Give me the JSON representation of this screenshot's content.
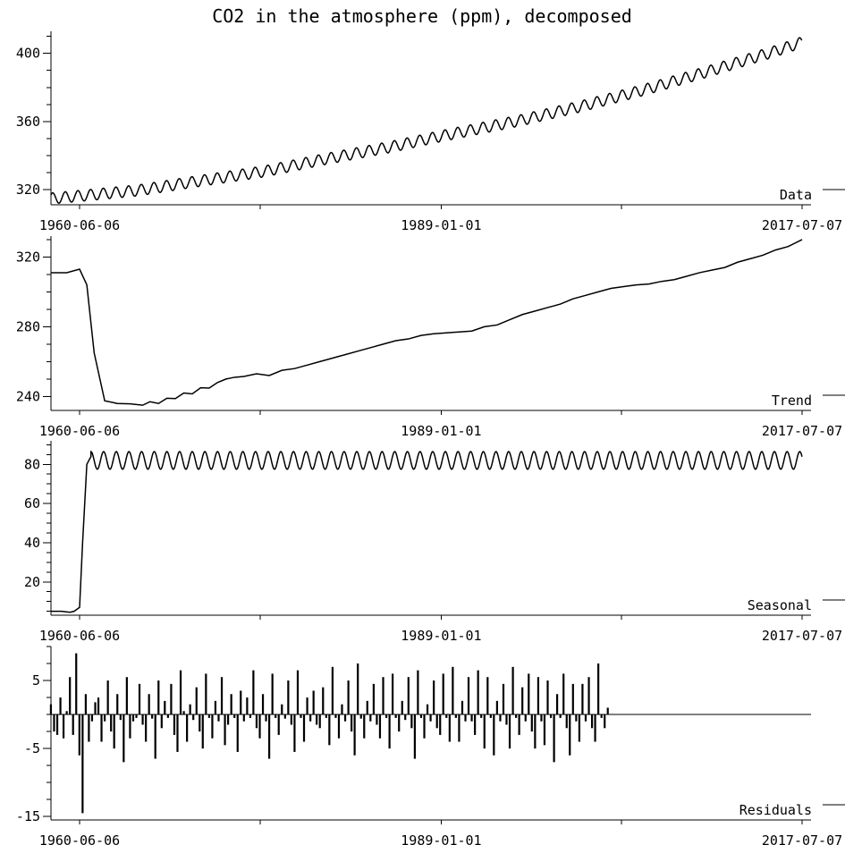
{
  "chart_data": {
    "type": "line",
    "title": "CO2 in the atmosphere (ppm), decomposed",
    "x_range": [
      "1958-03-01",
      "2017-07-07"
    ],
    "x_tick_labels": [
      "1960-06-06",
      "1989-01-01",
      "2017-07-07"
    ],
    "grid": false,
    "panels": [
      {
        "label": "Data",
        "type": "line",
        "ylim": [
          311,
          413
        ],
        "y_ticks": [
          320,
          360,
          400
        ],
        "trend": {
          "x": [
            "1958-03-01",
            "1960-06-06",
            "1965-01-01",
            "1970-01-01",
            "1975-01-01",
            "1980-01-01",
            "1985-01-01",
            "1989-01-01",
            "1995-01-01",
            "2000-01-01",
            "2005-01-01",
            "2010-01-01",
            "2015-01-01",
            "2017-07-07"
          ],
          "values": [
            314.7,
            316.2,
            319.4,
            325.1,
            330.6,
            338.1,
            345.0,
            351.4,
            360.2,
            368.8,
            378.5,
            389.2,
            400.4,
            406.5
          ]
        },
        "seasonal_amplitude": 3.2
      },
      {
        "label": "Trend",
        "type": "line",
        "ylim": [
          232,
          332
        ],
        "y_ticks": [
          240,
          280,
          320
        ],
        "x": [
          "1958-03-01",
          "1959-06-01",
          "1960-06-06",
          "1961-01-01",
          "1961-08-01",
          "1962-06-01",
          "1963-06-01",
          "1964-06-01",
          "1965-06-01",
          "1966-01-01",
          "1966-09-01",
          "1967-05-01",
          "1968-01-01",
          "1968-09-01",
          "1969-05-01",
          "1970-01-01",
          "1970-09-01",
          "1971-05-01",
          "1972-01-01",
          "1972-09-01",
          "1973-06-01",
          "1974-06-01",
          "1975-06-01",
          "1976-06-01",
          "1977-06-01",
          "1978-06-01",
          "1979-06-01",
          "1980-06-01",
          "1981-06-01",
          "1982-06-01",
          "1983-06-01",
          "1984-06-01",
          "1985-06-01",
          "1986-06-01",
          "1987-06-01",
          "1988-06-01",
          "1989-06-01",
          "1990-06-01",
          "1991-06-01",
          "1992-06-01",
          "1993-06-01",
          "1994-06-01",
          "1995-06-01",
          "1996-06-01",
          "1997-06-01",
          "1998-06-01",
          "1999-06-01",
          "2000-06-01",
          "2001-06-01",
          "2002-06-01",
          "2003-06-01",
          "2004-06-01",
          "2005-06-01",
          "2006-06-01",
          "2007-06-01",
          "2008-06-01",
          "2009-06-01",
          "2010-06-01",
          "2011-06-01",
          "2012-06-01",
          "2013-06-01",
          "2014-06-01",
          "2015-06-01",
          "2016-06-01",
          "2017-07-07"
        ],
        "values": [
          311.0,
          311.0,
          313.0,
          304.0,
          265.0,
          237.5,
          236.0,
          235.8,
          235.0,
          237.0,
          236.0,
          239.0,
          238.8,
          242.0,
          241.5,
          245.0,
          244.8,
          248.0,
          250.0,
          251.0,
          251.5,
          253.0,
          252.0,
          255.0,
          256.0,
          258.0,
          260.0,
          262.0,
          264.0,
          266.0,
          268.0,
          270.0,
          272.0,
          273.0,
          275.0,
          276.0,
          276.5,
          277.0,
          277.5,
          280.0,
          281.0,
          284.0,
          287.0,
          289.0,
          291.0,
          293.0,
          296.0,
          298.0,
          300.0,
          302.0,
          303.0,
          304.0,
          304.5,
          306.0,
          307.0,
          309.0,
          311.0,
          312.5,
          314.0,
          317.0,
          319.0,
          321.0,
          324.0,
          326.0,
          330.0
        ]
      },
      {
        "label": "Seasonal",
        "type": "line",
        "ylim": [
          3,
          92
        ],
        "y_ticks": [
          20,
          40,
          60,
          80
        ],
        "x": [
          "1958-03-01",
          "1959-01-01",
          "1959-09-01",
          "1960-01-01",
          "1960-06-06",
          "1960-09-01",
          "1961-01-01",
          "1961-05-01"
        ],
        "values": [
          5.0,
          5.0,
          4.5,
          5.0,
          7.0,
          40.0,
          80.0,
          84.0
        ],
        "steady_state": {
          "from": "1961-05-01",
          "mean": 82.0,
          "amplitude": 4.5,
          "period_years": 1
        }
      },
      {
        "label": "Residuals",
        "type": "bar",
        "ylim": [
          -15.5,
          10
        ],
        "y_ticks": [
          -15,
          -5,
          5
        ],
        "x_start": "1958-03-01",
        "bar_interval_months": 3,
        "values": [
          1.5,
          -2.5,
          -3.0,
          2.5,
          -3.5,
          0.5,
          5.5,
          -3.0,
          9.0,
          -6.0,
          -14.5,
          3.0,
          -4.0,
          -1.0,
          1.8,
          2.5,
          -4.0,
          -1.0,
          5.0,
          -2.5,
          -5.0,
          3.0,
          -0.8,
          -7.0,
          5.5,
          -3.5,
          -1.0,
          -0.5,
          4.5,
          -1.5,
          -4.0,
          3.0,
          -0.6,
          -6.5,
          5.0,
          -2.0,
          2.0,
          -0.5,
          4.5,
          -3.0,
          -5.5,
          6.5,
          0.5,
          -4.0,
          1.5,
          -0.8,
          4.0,
          -2.5,
          -5.0,
          6.0,
          -0.5,
          -3.5,
          2.0,
          -1.0,
          5.5,
          -4.5,
          -1.5,
          3.0,
          -0.5,
          -5.5,
          3.5,
          -1.0,
          2.5,
          -0.5,
          6.5,
          -2.0,
          -3.5,
          3.0,
          -1.0,
          -6.5,
          6.0,
          -0.5,
          -3.0,
          1.5,
          -0.6,
          5.0,
          -1.5,
          -5.5,
          6.5,
          -0.5,
          -4.0,
          2.5,
          -1.0,
          3.5,
          -1.5,
          -2.0,
          4.0,
          -0.5,
          -4.5,
          7.0,
          -0.5,
          -3.5,
          1.5,
          -1.0,
          5.0,
          -2.5,
          -6.0,
          7.5,
          -0.6,
          -3.5,
          2.0,
          -1.0,
          4.5,
          -1.5,
          -3.5,
          5.5,
          -0.5,
          -5.0,
          6.0,
          -0.5,
          -2.5,
          2.0,
          -0.8,
          5.5,
          -2.0,
          -6.5,
          6.5,
          -0.5,
          -3.5,
          1.5,
          -1.0,
          5.0,
          -2.0,
          -3.0,
          6.0,
          -0.5,
          -4.0,
          7.0,
          -0.5,
          -4.0,
          2.0,
          -1.0,
          5.5,
          -1.0,
          -3.0,
          6.5,
          -0.5,
          -5.0,
          5.5,
          -0.5,
          -6.0,
          2.0,
          -1.0,
          4.5,
          -1.5,
          -5.0,
          7.0,
          -0.5,
          -3.0,
          4.0,
          -1.0,
          6.0,
          -2.5,
          -5.0,
          5.5,
          -1.0,
          -4.5,
          5.0,
          -0.5,
          -7.0,
          3.0,
          -0.5,
          6.0,
          -2.0,
          -6.0,
          4.5,
          -1.0,
          -4.0,
          4.5,
          -1.0,
          5.5,
          -2.0,
          -4.0,
          7.5,
          -0.5,
          -2.0,
          1.0
        ]
      }
    ]
  }
}
